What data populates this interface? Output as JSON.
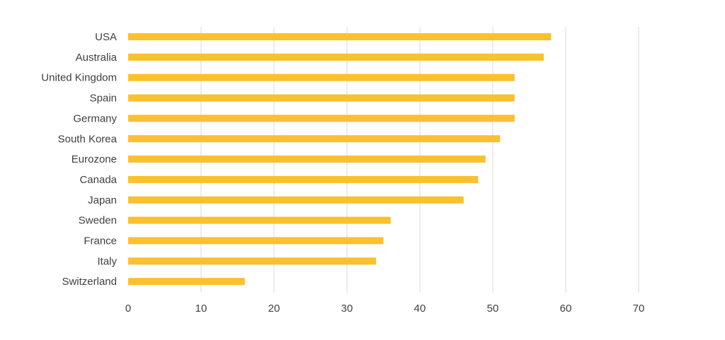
{
  "chart_data": {
    "type": "bar",
    "orientation": "horizontal",
    "categories": [
      "USA",
      "Australia",
      "United Kingdom",
      "Spain",
      "Germany",
      "South Korea",
      "Eurozone",
      "Canada",
      "Japan",
      "Sweden",
      "France",
      "Italy",
      "Switzerland"
    ],
    "values": [
      58,
      57,
      53,
      53,
      53,
      51,
      49,
      48,
      46,
      36,
      35,
      34,
      16
    ],
    "xlim": [
      0,
      70
    ],
    "xticks": [
      0,
      10,
      20,
      30,
      40,
      50,
      60,
      70
    ],
    "title": "",
    "xlabel": "",
    "ylabel": "",
    "grid": "vertical",
    "legend": "none",
    "bar_color": "#FBC02D",
    "grid_color": "#d9d9d9",
    "text_color": "#404040"
  }
}
